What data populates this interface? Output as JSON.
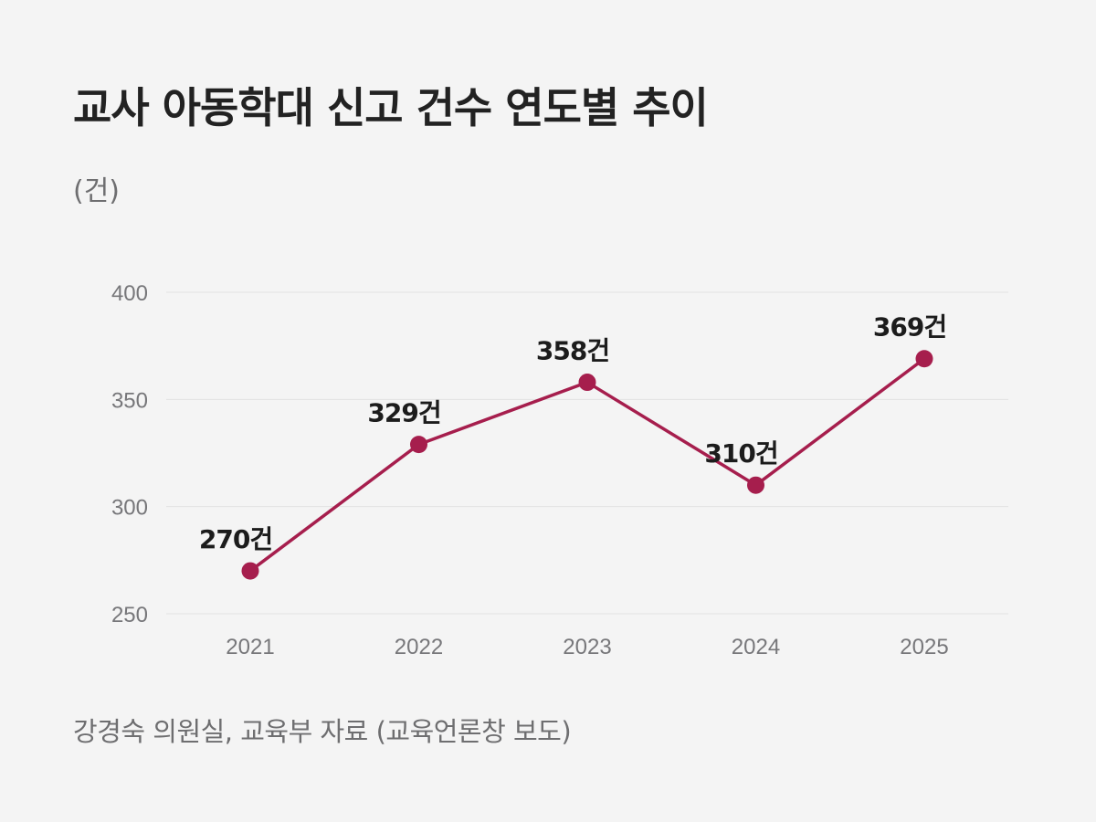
{
  "chart_data": {
    "type": "line",
    "title": "교사 아동학대 신고 건수 연도별 추이",
    "unit_label": "(건)",
    "categories": [
      "2021",
      "2022",
      "2023",
      "2024",
      "2025"
    ],
    "series": [
      {
        "values": [
          270,
          329,
          358,
          310,
          369
        ],
        "data_labels": [
          "270건",
          "329건",
          "358건",
          "310건",
          "369건"
        ],
        "color": "#a61e4d"
      }
    ],
    "ylim": [
      250,
      400
    ],
    "yticks": [
      "250",
      "300",
      "350",
      "400"
    ],
    "grid": true,
    "legend": "none"
  },
  "source": "강경숙 의원실, 교육부 자료 (교육언론창 보도)",
  "colors": {
    "background": "#f4f4f4",
    "line": "#a61e4d",
    "grid": "#e2e2e2",
    "axis_text": "#77777a",
    "title": "#222222"
  }
}
